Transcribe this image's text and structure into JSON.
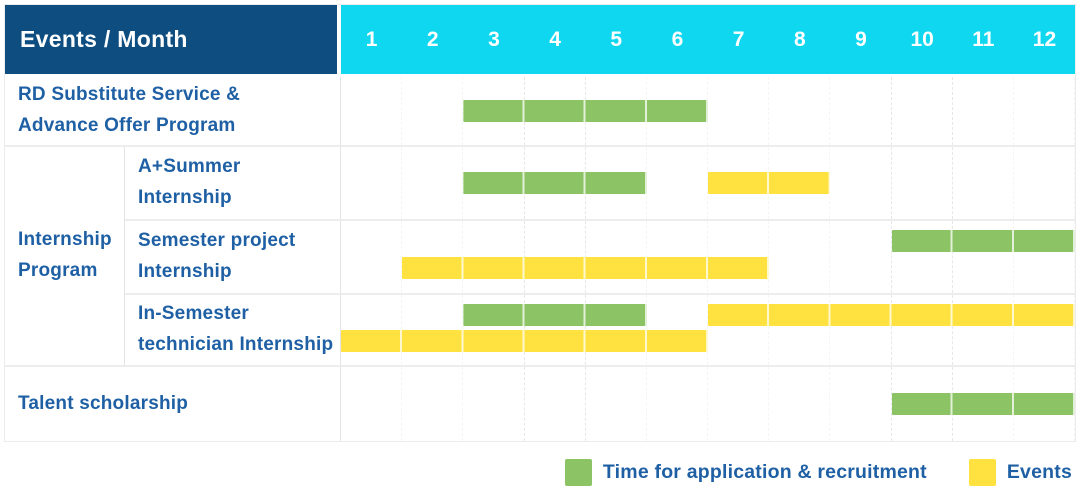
{
  "header": {
    "title": "Events / Month"
  },
  "colors": {
    "header_bg": "#0d4d80",
    "month_header_bg": "#10d7f0",
    "label_text": "#1f60a5",
    "application_green": "#8cc465",
    "events_yellow": "#ffe23f"
  },
  "chart_data": {
    "type": "table",
    "subtype": "gantt-schedule",
    "title": "Events / Month",
    "xlabel": "Month",
    "x_axis": {
      "ticks": [
        "1",
        "2",
        "3",
        "4",
        "5",
        "6",
        "7",
        "8",
        "9",
        "10",
        "11",
        "12"
      ],
      "range": [
        1,
        12
      ]
    },
    "grid": true,
    "legend_position": "bottom-right",
    "legend": [
      {
        "label": "Time for application & recruitment",
        "color": "#8cc465"
      },
      {
        "label": "Events",
        "color": "#ffe23f"
      }
    ],
    "rows": [
      {
        "label": "RD Substitute Service &\nAdvance Offer Program",
        "group": null,
        "lanes": 1,
        "bars": [
          {
            "series": "Time for application & recruitment",
            "start_month": 3,
            "end_month": 6,
            "lane": 0
          }
        ]
      },
      {
        "label": "A+Summer\nInternship",
        "group": "Internship Program",
        "lanes": 1,
        "bars": [
          {
            "series": "Time for application & recruitment",
            "start_month": 3,
            "end_month": 5,
            "lane": 0
          },
          {
            "series": "Events",
            "start_month": 7,
            "end_month": 8,
            "lane": 0
          }
        ]
      },
      {
        "label": "Semester project\nInternship",
        "group": "Internship Program",
        "lanes": 2,
        "bars": [
          {
            "series": "Time for application & recruitment",
            "start_month": 10,
            "end_month": 12,
            "lane": 0
          },
          {
            "series": "Events",
            "start_month": 2,
            "end_month": 7,
            "lane": 1
          }
        ]
      },
      {
        "label": "In-Semester\ntechnician Internship",
        "group": "Internship Program",
        "lanes": 2,
        "bars": [
          {
            "series": "Time for application & recruitment",
            "start_month": 3,
            "end_month": 5,
            "lane": 0
          },
          {
            "series": "Events",
            "start_month": 7,
            "end_month": 12,
            "lane": 0
          },
          {
            "series": "Events",
            "start_month": 1,
            "end_month": 6,
            "lane": 1
          }
        ]
      },
      {
        "label": "Talent scholarship",
        "group": null,
        "lanes": 1,
        "bars": [
          {
            "series": "Time for application & recruitment",
            "start_month": 10,
            "end_month": 12,
            "lane": 0
          }
        ]
      }
    ]
  }
}
